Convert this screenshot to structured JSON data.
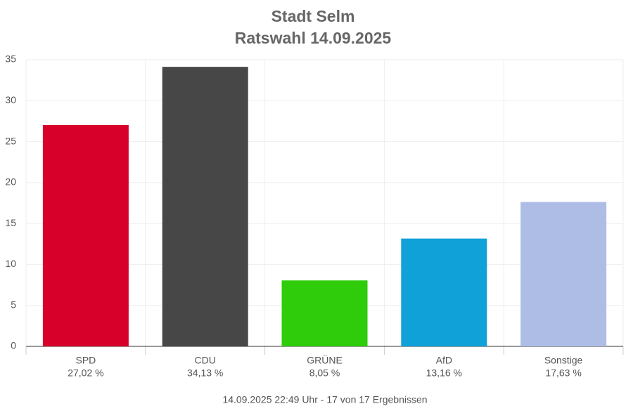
{
  "chart_data": {
    "type": "bar",
    "title": "Stadt Selm",
    "subtitle": "Ratswahl 14.09.2025",
    "categories": [
      "SPD",
      "CDU",
      "GRÜNE",
      "AfD",
      "Sonstige"
    ],
    "values": [
      27.02,
      34.13,
      8.05,
      13.16,
      17.63
    ],
    "value_labels": [
      "27,02 %",
      "34,13 %",
      "8,05 %",
      "13,16 %",
      "17,63 %"
    ],
    "colors": [
      "#d7002a",
      "#474747",
      "#2ecc0a",
      "#0fa1d8",
      "#adbde6"
    ],
    "ylim": [
      0,
      35
    ],
    "yticks": [
      0,
      5,
      10,
      15,
      20,
      25,
      30,
      35
    ],
    "grid": true,
    "footer": "14.09.2025 22:49 Uhr - 17 von 17 Ergebnissen"
  }
}
